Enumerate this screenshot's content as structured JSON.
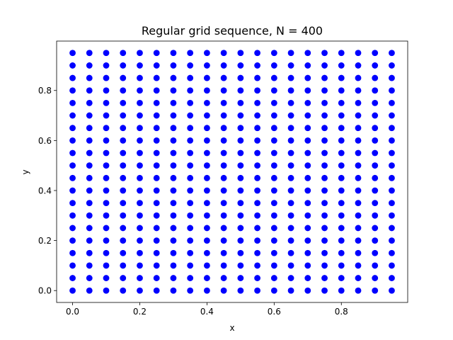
{
  "chart_data": {
    "type": "scatter",
    "title": "Regular grid sequence, N = 400",
    "xlabel": "x",
    "ylabel": "y",
    "xlim": [
      -0.0475,
      0.9975
    ],
    "ylim": [
      -0.0475,
      0.9975
    ],
    "grid": false,
    "marker_color": "#0000ff",
    "grid_points": {
      "x_values": [
        0.0,
        0.05,
        0.1,
        0.15,
        0.2,
        0.25,
        0.3,
        0.35,
        0.4,
        0.45,
        0.5,
        0.55,
        0.6,
        0.65,
        0.7,
        0.75,
        0.8,
        0.85,
        0.9,
        0.95
      ],
      "y_values": [
        0.0,
        0.05,
        0.1,
        0.15,
        0.2,
        0.25,
        0.3,
        0.35,
        0.4,
        0.45,
        0.5,
        0.55,
        0.6,
        0.65,
        0.7,
        0.75,
        0.8,
        0.85,
        0.9,
        0.95
      ]
    },
    "x_ticks": [
      {
        "value": 0.0,
        "label": "0.0"
      },
      {
        "value": 0.2,
        "label": "0.2"
      },
      {
        "value": 0.4,
        "label": "0.4"
      },
      {
        "value": 0.6,
        "label": "0.6"
      },
      {
        "value": 0.8,
        "label": "0.8"
      }
    ],
    "y_ticks": [
      {
        "value": 0.0,
        "label": "0.0"
      },
      {
        "value": 0.2,
        "label": "0.2"
      },
      {
        "value": 0.4,
        "label": "0.4"
      },
      {
        "value": 0.6,
        "label": "0.6"
      },
      {
        "value": 0.8,
        "label": "0.8"
      }
    ]
  }
}
